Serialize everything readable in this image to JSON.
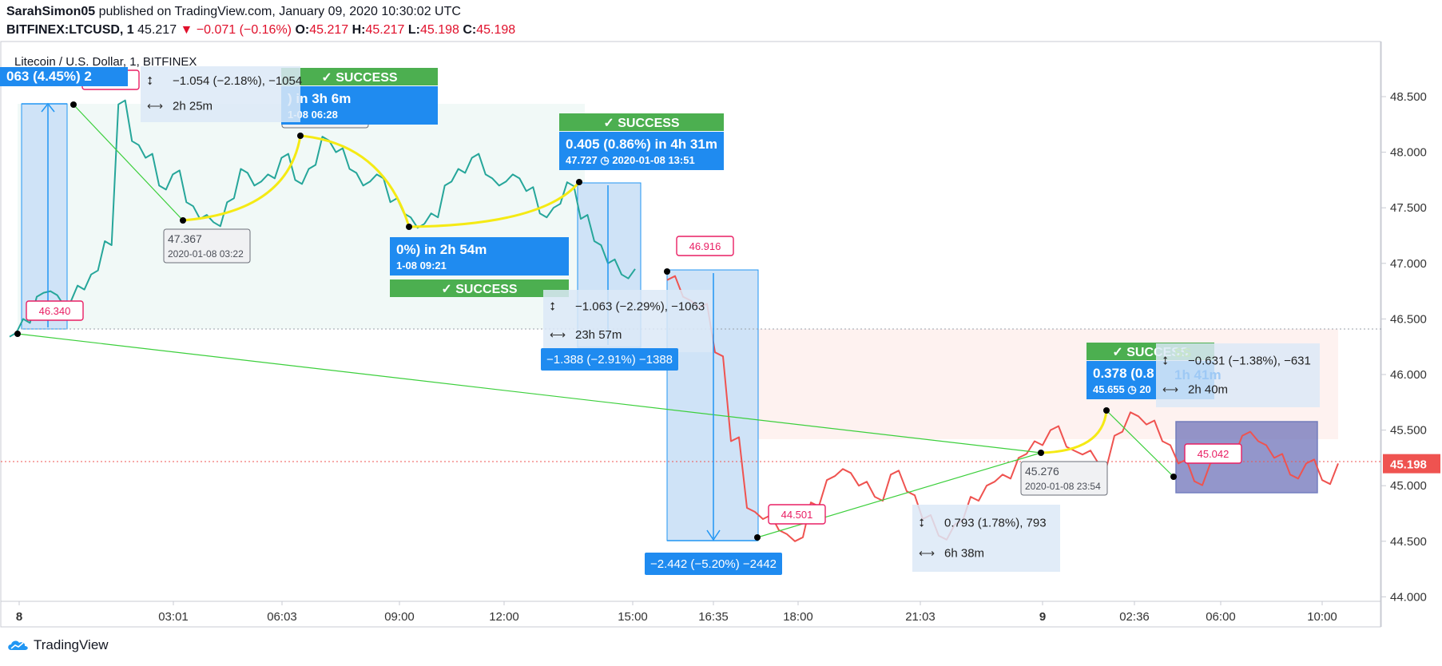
{
  "header": {
    "user": "SarahSimon05",
    "published": " published on TradingView.com, January 09, 2020 10:30:02 UTC",
    "symbol": "BITFINEX:LTCUSD, 1",
    "last": " 45.217 ",
    "change": "−0.071 (−0.16%)",
    "o_label": " O:",
    "o_val": "45.217",
    "h_label": " H:",
    "h_val": "45.217",
    "l_label": " L:",
    "l_val": "45.198",
    "c_label": " C:",
    "c_val": "45.198"
  },
  "footer": {
    "brand": "TradingView"
  },
  "chart_data": {
    "type": "line",
    "title": "Litecoin / U.S. Dollar, 1, BITFINEX",
    "y_ticks": [
      "44.000",
      "44.500",
      "45.000",
      "45.500",
      "46.000",
      "46.500",
      "47.000",
      "47.500",
      "48.000",
      "48.500"
    ],
    "ylim": [
      43.95,
      48.95
    ],
    "x_ticks": [
      "8",
      "03:01",
      "06:03",
      "09:00",
      "12:00",
      "15:00",
      "16:35",
      "18:00",
      "21:03",
      "9",
      "02:36",
      "06:00",
      "10:00"
    ],
    "last_price": "45.198",
    "grid": false,
    "series": [
      {
        "color": "#26a69a",
        "values": [
          46.34,
          46.5,
          46.7,
          46.75,
          46.62,
          46.8,
          46.9,
          47.2,
          48.43,
          48.1,
          47.95,
          47.7,
          47.8,
          47.55,
          47.4,
          47.37,
          47.55,
          47.85,
          47.7,
          47.8,
          47.95,
          47.75,
          47.85,
          48.14,
          48.0,
          47.85,
          47.7,
          47.8,
          47.55,
          47.45,
          47.32,
          47.45,
          47.7,
          47.85,
          47.95,
          47.8,
          47.7,
          47.8,
          47.65,
          47.45,
          47.5,
          47.73,
          47.4,
          47.2,
          47.0,
          46.9,
          46.95
        ]
      },
      {
        "color": "#ef5350",
        "values": [
          46.85,
          46.7,
          46.6,
          46.2,
          45.4,
          44.8,
          44.7,
          44.6,
          44.5,
          44.85,
          45.05,
          45.15,
          45.0,
          44.9,
          45.1,
          44.95,
          44.7,
          44.55,
          44.65,
          44.9,
          45.0,
          45.1,
          45.25,
          45.4,
          45.5,
          45.35,
          45.28,
          45.2,
          45.45,
          45.66,
          45.55,
          45.4,
          45.2,
          45.04,
          45.2,
          45.3,
          45.45,
          45.4,
          45.25,
          45.1,
          45.2,
          45.05,
          45.2
        ]
      }
    ],
    "annotations": {
      "price_labels": [
        "46.340",
        "48.430",
        "46.916",
        "44.501",
        "45.042"
      ],
      "point_labels": [
        {
          "price": "47.367",
          "date": "2020-01-08 03:22"
        },
        {
          "price": "48.142",
          "date": "2020-01-08 06:27"
        },
        {
          "price": "47.322",
          "date": "2020-01-08 09:20"
        },
        {
          "price": "45.276",
          "date": "2020-01-08 23:54"
        }
      ],
      "success": [
        "SUCCESS",
        "SUCCESS",
        "SUCCESS",
        "SUCCESS"
      ],
      "blue_callouts": [
        {
          "line1": "063 (4.45%) 2",
          "line2": ""
        },
        {
          "line1": ") in 3h 6m",
          "line2": "1-08  06:28"
        },
        {
          "line1": "0%) in 2h 54m",
          "line2": "1-08  09:21"
        },
        {
          "line1": "0.405 (0.86%) in 4h 31m",
          "line2": "47.727 ◷ 2020-01-08  13:51"
        },
        {
          "line1": "0.378 (0.8",
          "line2": "45.655 ◷ 20"
        }
      ],
      "measures": [
        {
          "range": "−1.054 (−2.18%), −1054",
          "time": "2h 25m"
        },
        {
          "range": "−1.063 (−2.29%), −1063",
          "time": "23h 57m"
        },
        {
          "range": "0.793 (1.78%), 793",
          "time": "6h 38m"
        },
        {
          "range": "−0.631 (−1.38%), −631",
          "time": "2h 40m"
        }
      ],
      "range_labels": [
        "−1.388 (−2.91%) −1388",
        "−2.442 (−5.20%) −2442"
      ],
      "partial_texts": [
        "1h 41m",
        "SS"
      ]
    }
  }
}
